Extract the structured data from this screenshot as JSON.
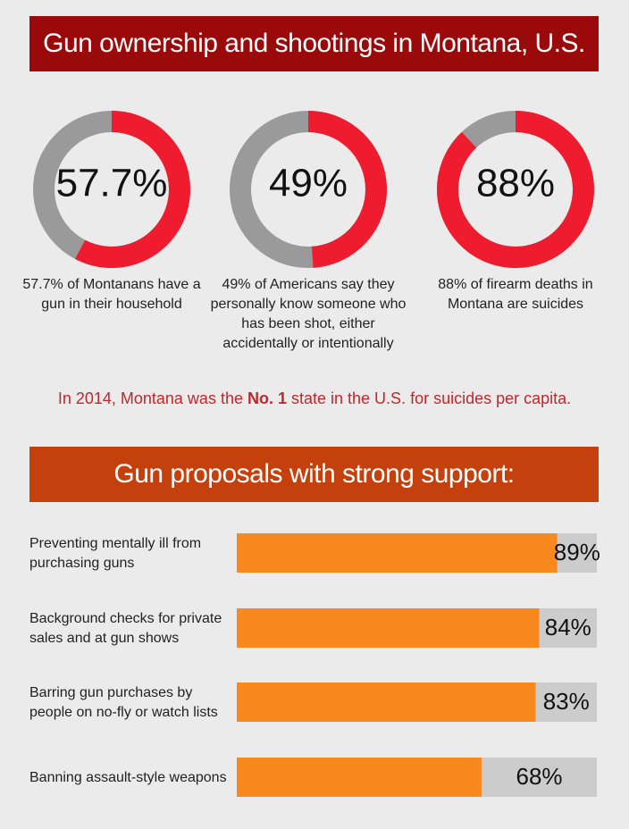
{
  "header": {
    "title": "Gun ownership and shootings in Montana, U.S."
  },
  "chart_data": [
    {
      "type": "donut",
      "values": [
        57.7
      ],
      "value_labels": [
        "57.7%"
      ],
      "ylim": [
        0,
        100
      ],
      "color": "#ee1c2e",
      "track_color": "#9a9a9a",
      "caption": "57.7% of Montanans have a gun in their household"
    },
    {
      "type": "donut",
      "values": [
        49
      ],
      "value_labels": [
        "49%"
      ],
      "ylim": [
        0,
        100
      ],
      "color": "#ee1c2e",
      "track_color": "#9a9a9a",
      "caption": "49% of Americans say they personally know someone who has been shot, either accidentally or intentionally"
    },
    {
      "type": "donut",
      "values": [
        88
      ],
      "value_labels": [
        "88%"
      ],
      "ylim": [
        0,
        100
      ],
      "color": "#ee1c2e",
      "track_color": "#9a9a9a",
      "caption": "88% of firearm deaths in Montana are suicides"
    },
    {
      "type": "bar",
      "title": "Gun proposals with strong support:",
      "categories": [
        "Preventing mentally ill from purchasing guns",
        "Background checks for private sales and at gun shows",
        "Barring gun purchases by people on no-fly or watch lists",
        "Banning assault-style weapons"
      ],
      "values": [
        89,
        84,
        83,
        68
      ],
      "value_labels": [
        "89%",
        "84%",
        "83%",
        "68%"
      ],
      "xlim": [
        0,
        100
      ],
      "color": "#f7891f",
      "track_color": "#cccccc"
    }
  ],
  "note": {
    "before": "In 2014, Montana was the ",
    "bold": "No. 1",
    "after": " state in the U.S. for suicides per capita."
  }
}
